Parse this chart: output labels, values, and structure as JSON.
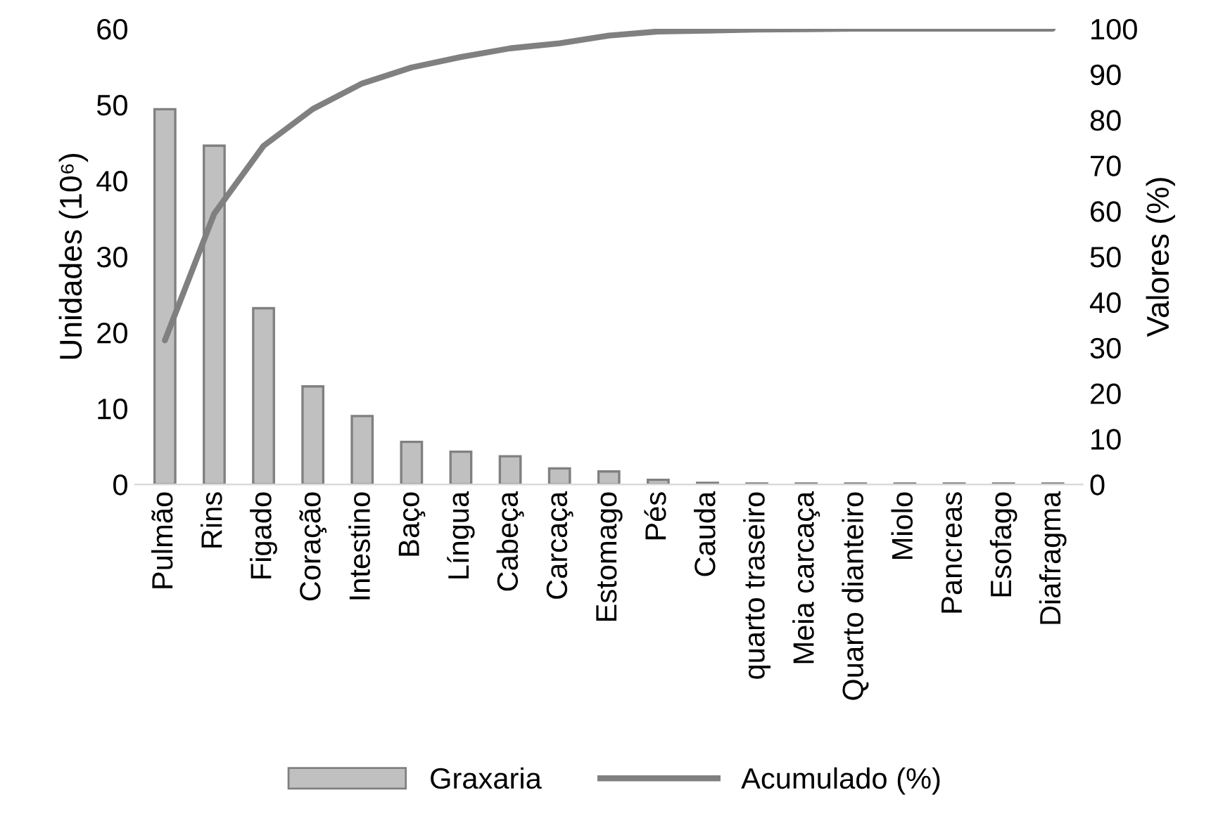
{
  "chart_data": {
    "type": "bar",
    "categories": [
      "Pulmão",
      "Rins",
      "Figado",
      "Coração",
      "Intestino",
      "Baço",
      "Língua",
      "Cabeça",
      "Carcaça",
      "Estomago",
      "Pés",
      "Cauda",
      "quarto traseiro",
      "Meia carcaça",
      "Quarto dianteiro",
      "Miolo",
      "Pancreas",
      "Esofago",
      "Diafragma"
    ],
    "series": [
      {
        "name": "Graxaria",
        "color": "#c0c0c0",
        "values": [
          49.4,
          44.6,
          23.2,
          12.9,
          9.0,
          5.6,
          4.3,
          3.7,
          2.1,
          1.7,
          0.6,
          0.2,
          0.1,
          0.1,
          0.1,
          0.1,
          0.1,
          0.1,
          0.1
        ]
      },
      {
        "name": "Acumulado (%)",
        "type": "line",
        "axis": "y2",
        "color": "#808080",
        "values": [
          31.6,
          59.4,
          74.3,
          82.4,
          88.0,
          91.5,
          93.8,
          95.7,
          96.8,
          98.5,
          99.4,
          99.6,
          99.8,
          99.9,
          100,
          100,
          100,
          100,
          100
        ]
      }
    ],
    "ylabel": "Unidades (10⁶)",
    "y2label": "Valores (%)",
    "ylim": [
      0,
      60
    ],
    "yticks": [
      0,
      10,
      20,
      30,
      40,
      50,
      60
    ],
    "y2lim": [
      0,
      100
    ],
    "y2ticks": [
      0,
      10,
      20,
      30,
      40,
      50,
      60,
      70,
      80,
      90,
      100
    ],
    "grid": false,
    "legend": "bottom"
  }
}
